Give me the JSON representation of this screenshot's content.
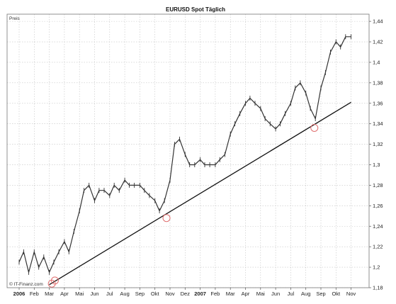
{
  "chart_data": {
    "type": "line",
    "title": "EURUSD Spot Täglich",
    "ylabel": "Preis",
    "watermark": "© IT-Finanz.com",
    "ylim": [
      1.18,
      1.447
    ],
    "x_ticks": [
      "2006",
      "Feb",
      "Mar",
      "Apr",
      "Mai",
      "Jun",
      "Jul",
      "Aug",
      "Sep",
      "Okt",
      "Nov",
      "Dez",
      "2007",
      "Feb",
      "Mar",
      "Apr",
      "Mai",
      "Jun",
      "Jul",
      "Aug",
      "Sep",
      "Okt",
      "Nov"
    ],
    "y_ticks": [
      {
        "value": 1.18,
        "label": "1,18"
      },
      {
        "value": 1.2,
        "label": "1,2"
      },
      {
        "value": 1.22,
        "label": "1,22"
      },
      {
        "value": 1.24,
        "label": "1,24"
      },
      {
        "value": 1.26,
        "label": "1,26"
      },
      {
        "value": 1.28,
        "label": "1,28"
      },
      {
        "value": 1.3,
        "label": "1,3"
      },
      {
        "value": 1.32,
        "label": "1,32"
      },
      {
        "value": 1.34,
        "label": "1,34"
      },
      {
        "value": 1.36,
        "label": "1,36"
      },
      {
        "value": 1.38,
        "label": "1,38"
      },
      {
        "value": 1.4,
        "label": "1,4"
      },
      {
        "value": 1.42,
        "label": "1,42"
      },
      {
        "value": 1.44,
        "label": "1,44"
      }
    ],
    "series": [
      {
        "style": "price",
        "color": "#333333",
        "x": [
          "2006-01-01",
          "2006-01-10",
          "2006-01-20",
          "2006-02-01",
          "2006-02-10",
          "2006-02-20",
          "2006-03-01",
          "2006-03-10",
          "2006-03-20",
          "2006-04-01",
          "2006-04-10",
          "2006-04-20",
          "2006-05-01",
          "2006-05-10",
          "2006-05-20",
          "2006-06-01",
          "2006-06-10",
          "2006-06-20",
          "2006-07-01",
          "2006-07-10",
          "2006-07-20",
          "2006-08-01",
          "2006-08-10",
          "2006-08-20",
          "2006-09-01",
          "2006-09-10",
          "2006-09-20",
          "2006-10-01",
          "2006-10-10",
          "2006-10-20",
          "2006-11-01",
          "2006-11-10",
          "2006-11-20",
          "2006-12-01",
          "2006-12-10",
          "2006-12-20",
          "2007-01-01",
          "2007-01-10",
          "2007-01-20",
          "2007-02-01",
          "2007-02-10",
          "2007-02-20",
          "2007-03-01",
          "2007-03-10",
          "2007-03-20",
          "2007-04-01",
          "2007-04-10",
          "2007-04-20",
          "2007-05-01",
          "2007-05-10",
          "2007-05-20",
          "2007-06-01",
          "2007-06-10",
          "2007-06-20",
          "2007-07-01",
          "2007-07-10",
          "2007-07-20",
          "2007-08-01",
          "2007-08-10",
          "2007-08-20",
          "2007-09-01",
          "2007-09-10",
          "2007-09-20",
          "2007-10-01",
          "2007-10-10",
          "2007-10-20",
          "2007-11-01"
        ],
        "values": [
          1.205,
          1.215,
          1.195,
          1.215,
          1.2,
          1.21,
          1.195,
          1.205,
          1.215,
          1.225,
          1.215,
          1.235,
          1.255,
          1.275,
          1.28,
          1.265,
          1.275,
          1.275,
          1.27,
          1.28,
          1.275,
          1.285,
          1.28,
          1.28,
          1.28,
          1.275,
          1.27,
          1.265,
          1.255,
          1.265,
          1.285,
          1.32,
          1.325,
          1.31,
          1.3,
          1.3,
          1.305,
          1.3,
          1.3,
          1.3,
          1.305,
          1.31,
          1.33,
          1.34,
          1.35,
          1.36,
          1.365,
          1.36,
          1.355,
          1.345,
          1.34,
          1.335,
          1.34,
          1.35,
          1.36,
          1.375,
          1.38,
          1.37,
          1.355,
          1.345,
          1.375,
          1.39,
          1.41,
          1.42,
          1.415,
          1.425,
          1.425
        ]
      },
      {
        "style": "trendline",
        "color": "#111111",
        "x": [
          "2006-03-01",
          "2007-11-01"
        ],
        "values": [
          1.183,
          1.361
        ]
      }
    ],
    "markers": [
      {
        "x": "2006-03-06",
        "y": 1.184
      },
      {
        "x": "2006-03-12",
        "y": 1.187
      },
      {
        "x": "2006-10-24",
        "y": 1.248
      },
      {
        "x": "2007-08-18",
        "y": 1.336
      }
    ],
    "grid": true,
    "legend": "none"
  }
}
